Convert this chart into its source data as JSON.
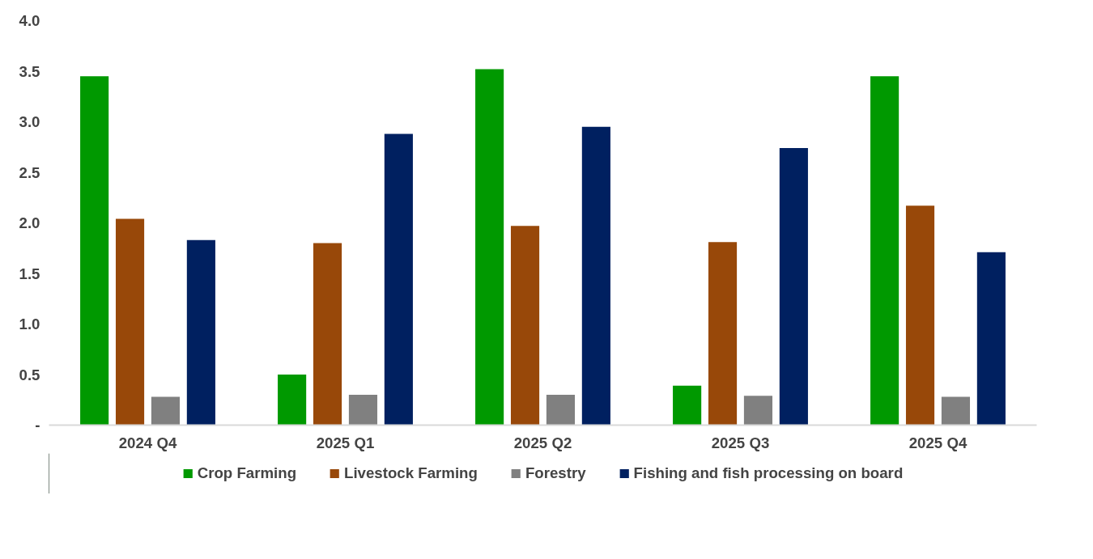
{
  "chart_data": {
    "type": "bar",
    "categories": [
      "2024 Q4",
      "2025 Q1",
      "2025 Q2",
      "2025 Q3",
      "2025 Q4"
    ],
    "series": [
      {
        "name": "Crop Farming",
        "color": "#009900",
        "values": [
          3.45,
          0.5,
          3.52,
          0.39,
          3.45
        ]
      },
      {
        "name": "Livestock Farming",
        "color": "#984809",
        "values": [
          2.04,
          1.8,
          1.97,
          1.81,
          2.17
        ]
      },
      {
        "name": "Forestry",
        "color": "#808080",
        "values": [
          0.28,
          0.3,
          0.3,
          0.29,
          0.28
        ]
      },
      {
        "name": "Fishing and fish processing on board",
        "color": "#002060",
        "values": [
          1.83,
          2.88,
          2.95,
          2.74,
          1.71
        ]
      }
    ],
    "ylim": [
      0,
      4.0
    ],
    "yticks": [
      {
        "value": 0,
        "label": "-"
      },
      {
        "value": 0.5,
        "label": "0.5"
      },
      {
        "value": 1.0,
        "label": "1.0"
      },
      {
        "value": 1.5,
        "label": "1.5"
      },
      {
        "value": 2.0,
        "label": "2.0"
      },
      {
        "value": 2.5,
        "label": "2.5"
      },
      {
        "value": 3.0,
        "label": "3.0"
      },
      {
        "value": 3.5,
        "label": "3.5"
      },
      {
        "value": 4.0,
        "label": "4.0"
      }
    ],
    "grid": false,
    "legend": "bottom"
  }
}
